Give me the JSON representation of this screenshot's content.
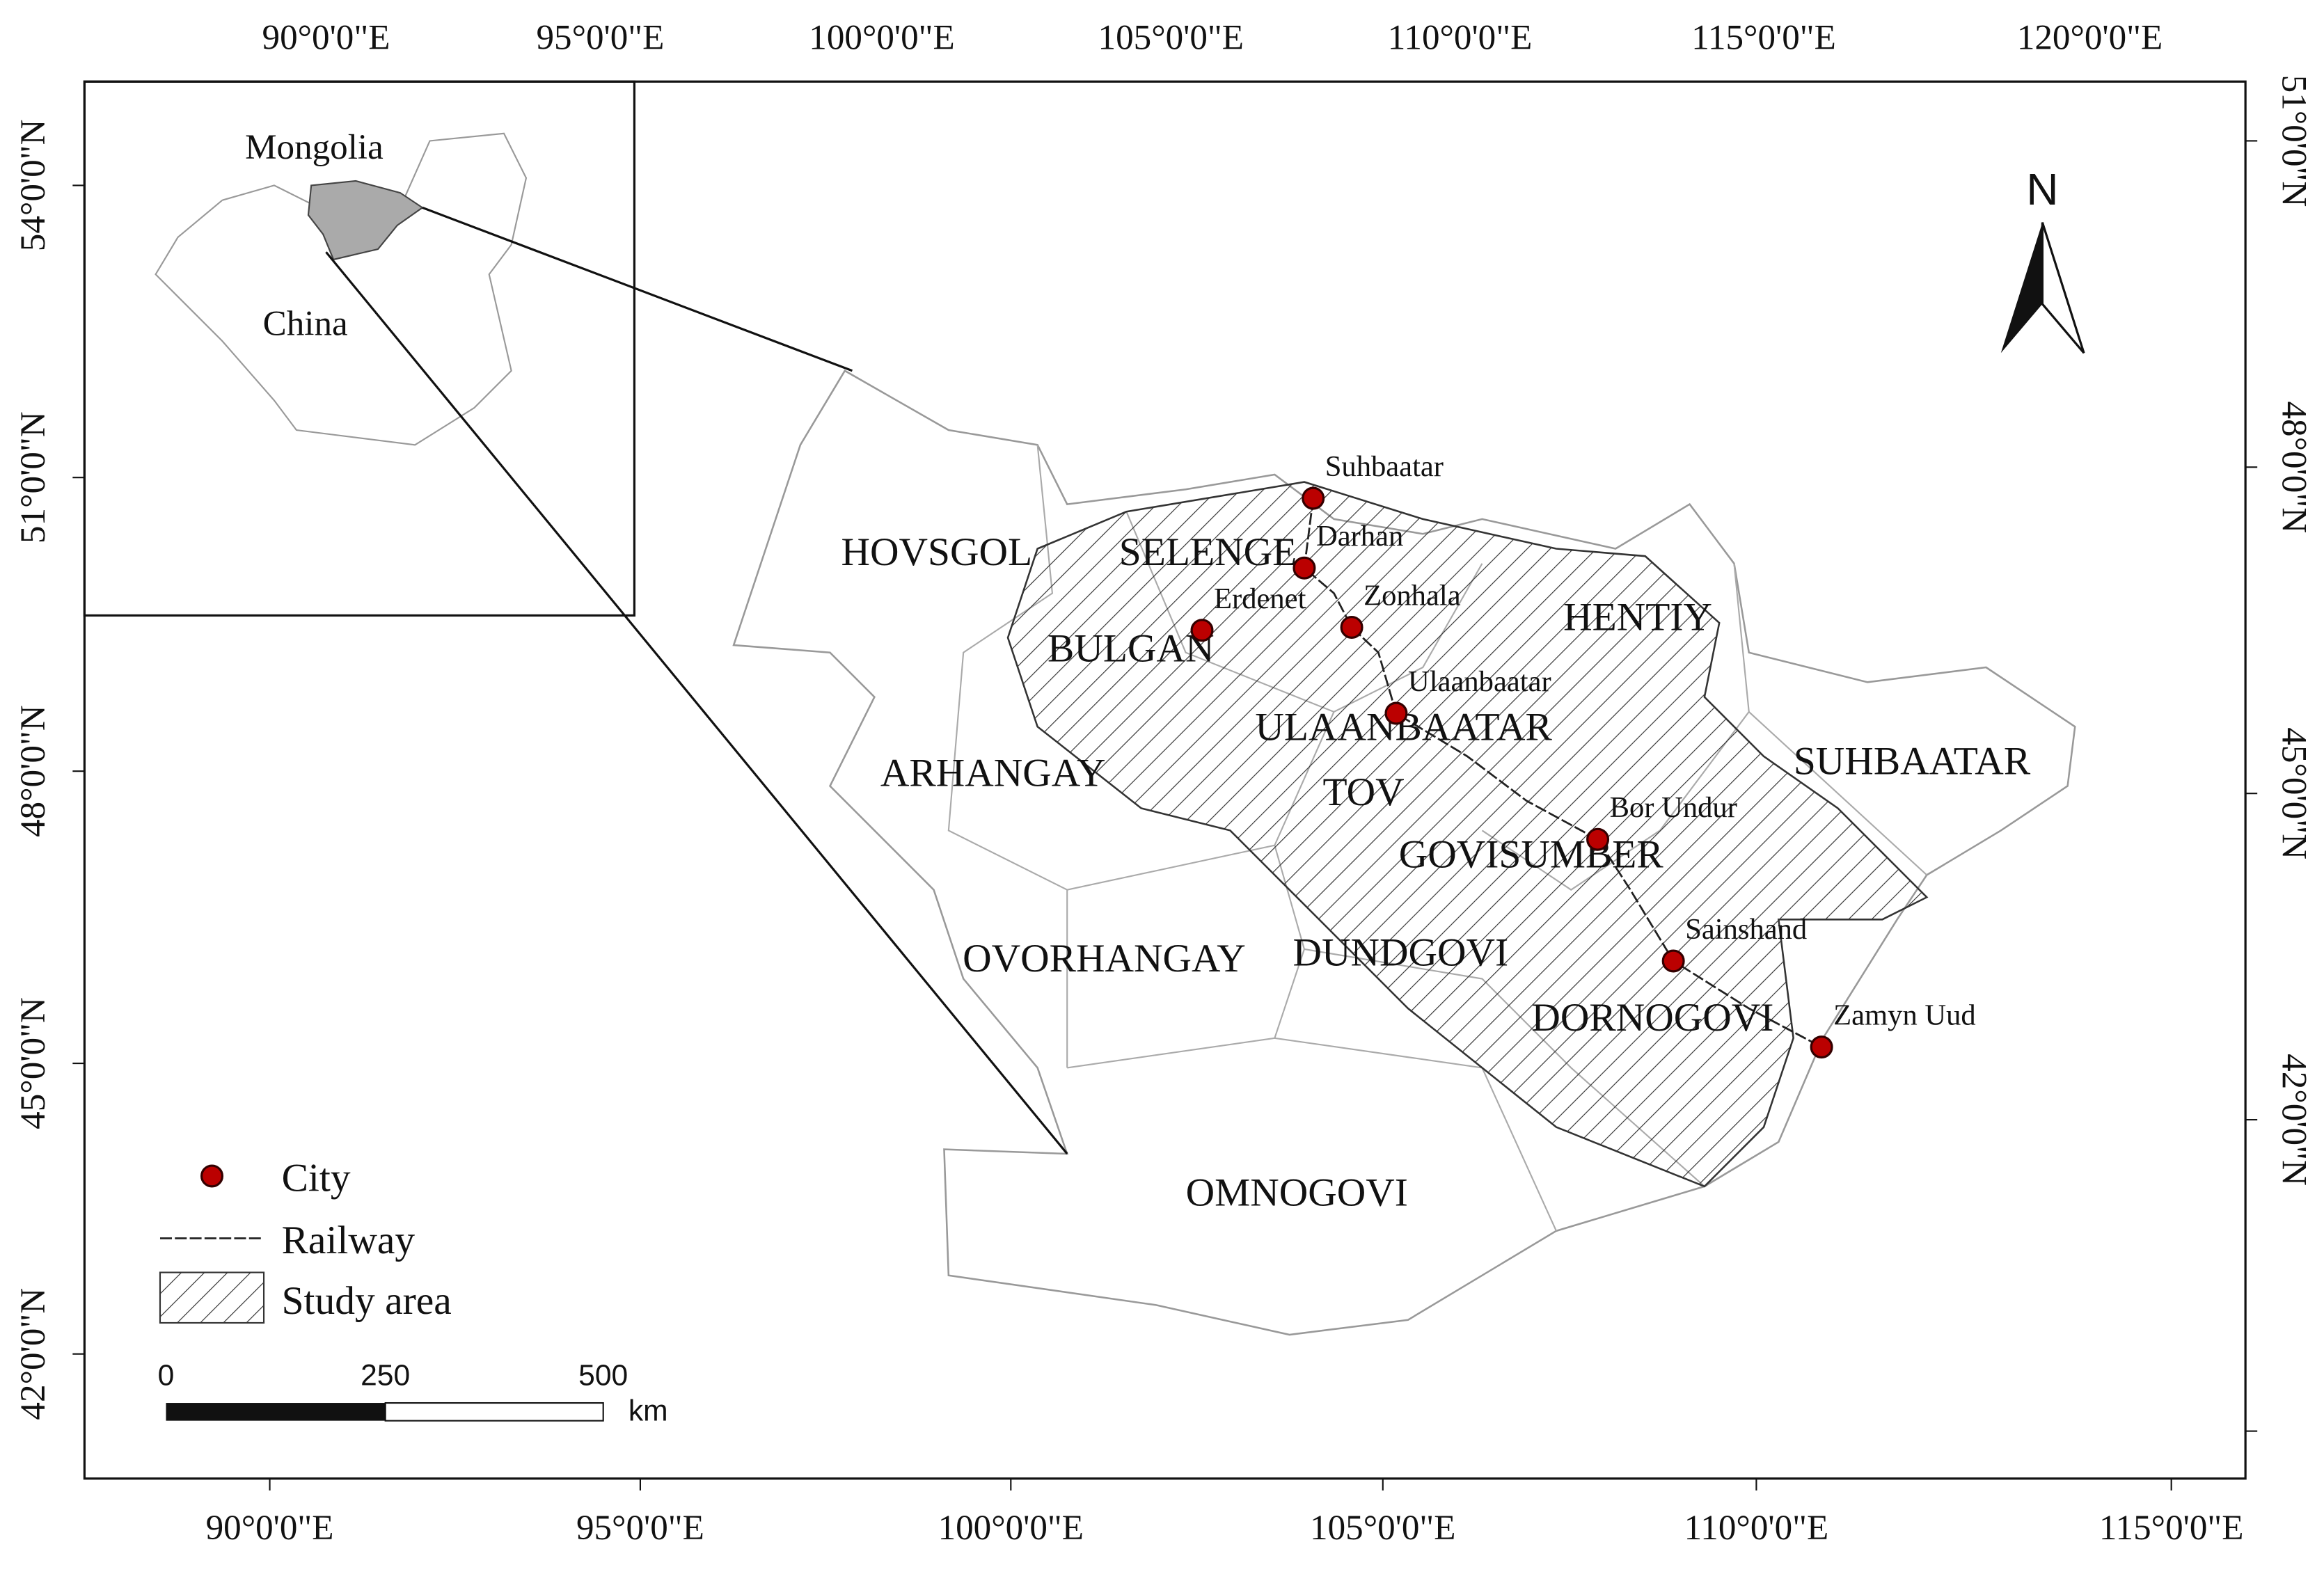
{
  "map": {
    "top_axis_labels": [
      "90°0'0\"E",
      "95°0'0\"E",
      "100°0'0\"E",
      "105°0'0\"E",
      "110°0'0\"E",
      "115°0'0\"E",
      "120°0'0\"E"
    ],
    "bottom_axis_labels": [
      "90°0'0\"E",
      "95°0'0\"E",
      "100°0'0\"E",
      "105°0'0\"E",
      "110°0'0\"E",
      "115°0'0\"E"
    ],
    "left_axis_labels": [
      "54°0'0\"N",
      "51°0'0\"N",
      "48°0'0\"N",
      "45°0'0\"N",
      "42°0'0\"N"
    ],
    "right_axis_labels": [
      "51°0'0\"N",
      "48°0'0\"N",
      "45°0'0\"N",
      "42°0'0\"N"
    ],
    "inset_labels": [
      "Mongolia",
      "China"
    ],
    "provinces": [
      "HOVSGOL",
      "SELENGE",
      "BULGAN",
      "HENTIY",
      "ULAANBAATAR",
      "ARHANGAY",
      "TOV",
      "SUHBAATAR",
      "GOVISUMBER",
      "OVORHANGAY",
      "DUNDGOVI",
      "DORNOGOVI",
      "OMNOGOVI"
    ],
    "cities": [
      "Suhbaatar",
      "Darhan",
      "Erdenet",
      "Zonhala",
      "Ulaanbaatar",
      "Bor Undur",
      "Sainshand",
      "Zamyn Uud"
    ],
    "north_label": "N",
    "legend": {
      "items": [
        "City",
        "Railway",
        "Study area"
      ]
    },
    "scale_bar": {
      "ticks": [
        "0",
        "250",
        "500"
      ],
      "unit": "km"
    }
  }
}
